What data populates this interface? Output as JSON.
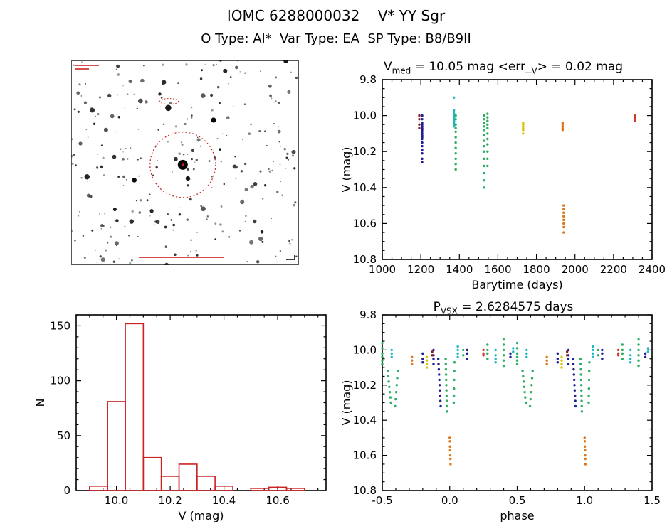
{
  "header": {
    "title": "IOMC 6288000032    V* YY Sgr",
    "subtitle": "O Type: Al*  Var Type: EA  SP Type: B8/B9II"
  },
  "finder_chart": {
    "n_stars": 300,
    "seed": 20,
    "target_fx": 0.49,
    "target_fy": 0.51,
    "circle_radius": 46,
    "mark_color": "#cc2222",
    "small_oval_fx": 0.43,
    "small_oval_fy": 0.2
  },
  "chart_data": [
    {
      "id": "lightcurve",
      "type": "scatter",
      "title_text": "V_med = 10.05 mag <err_V> = 0.02 mag",
      "title_parts": [
        {
          "t": "V"
        },
        {
          "t": "med",
          "sub": true
        },
        {
          "t": " = 10.05 mag <err_"
        },
        {
          "t": "V",
          "sub": true
        },
        {
          "t": "> = 0.02 mag"
        }
      ],
      "xlabel": "Barytime (days)",
      "ylabel": "V (mag)",
      "xlim": [
        1000,
        2400
      ],
      "ylim": [
        9.8,
        10.8
      ],
      "x_minor": 50,
      "y_minor": 0.05,
      "xticks": [
        {
          "v": 1000,
          "l": "1000"
        },
        {
          "v": 1200,
          "l": "1200"
        },
        {
          "v": 1400,
          "l": "1400"
        },
        {
          "v": 1600,
          "l": "1600"
        },
        {
          "v": 1800,
          "l": "1800"
        },
        {
          "v": 2000,
          "l": "2000"
        },
        {
          "v": 2200,
          "l": "2200"
        },
        {
          "v": 2400,
          "l": "2400"
        }
      ],
      "yticks": [
        {
          "v": 9.8,
          "l": "9.8"
        },
        {
          "v": 10.0,
          "l": "10.0"
        },
        {
          "v": 10.2,
          "l": "10.2"
        },
        {
          "v": 10.4,
          "l": "10.4"
        },
        {
          "v": 10.6,
          "l": "10.6"
        },
        {
          "v": 10.8,
          "l": "10.8"
        }
      ],
      "series": [
        {
          "name": "epoch-maroon",
          "color": "#8e1f1f",
          "clusters": [
            {
              "x": 1192,
              "ys": [
                10.0,
                10.02,
                10.05,
                10.07
              ]
            }
          ]
        },
        {
          "name": "epoch-navy",
          "color": "#1e1e96",
          "clusters": [
            {
              "x": 1207,
              "ys": [
                10.0,
                10.02,
                10.04,
                10.05,
                10.06,
                10.07,
                10.08,
                10.09,
                10.1,
                10.11,
                10.12,
                10.13,
                10.15,
                10.17,
                10.19,
                10.21,
                10.24,
                10.26
              ]
            }
          ]
        },
        {
          "name": "epoch-cyan",
          "color": "#1fb9c4",
          "clusters": [
            {
              "x": 1372,
              "ys": [
                9.9,
                9.97,
                9.98,
                9.99,
                10.0,
                10.01,
                10.02,
                10.03,
                10.04,
                10.05,
                10.06
              ]
            }
          ]
        },
        {
          "name": "epoch-green",
          "color": "#2eae62",
          "clusters": [
            {
              "x": 1381,
              "ys": [
                10.0,
                10.02,
                10.05,
                10.07,
                10.09,
                10.12,
                10.15,
                10.18,
                10.21,
                10.24,
                10.27,
                10.3
              ]
            },
            {
              "x": 1528,
              "ys": [
                10.0,
                10.02,
                10.04,
                10.06,
                10.08,
                10.11,
                10.14,
                10.17,
                10.2,
                10.24,
                10.28,
                10.32,
                10.36,
                10.4
              ]
            },
            {
              "x": 1546,
              "ys": [
                9.99,
                10.01,
                10.03,
                10.05,
                10.07,
                10.1,
                10.13,
                10.16,
                10.2,
                10.24,
                10.28
              ]
            }
          ]
        },
        {
          "name": "epoch-yellow",
          "color": "#d8c400",
          "clusters": [
            {
              "x": 1731,
              "ys": [
                10.04,
                10.05,
                10.06,
                10.07,
                10.08,
                10.1
              ]
            }
          ]
        },
        {
          "name": "epoch-orange",
          "color": "#e0761a",
          "clusters": [
            {
              "x": 1936,
              "ys": [
                10.04,
                10.05,
                10.06,
                10.07,
                10.08
              ]
            },
            {
              "x": 1941,
              "ys": [
                10.5,
                10.52,
                10.54,
                10.56,
                10.58,
                10.6,
                10.62,
                10.65
              ]
            }
          ]
        },
        {
          "name": "epoch-red",
          "color": "#cf3a28",
          "clusters": [
            {
              "x": 2310,
              "ys": [
                10.0,
                10.01,
                10.02,
                10.03
              ]
            }
          ]
        }
      ]
    },
    {
      "id": "histogram",
      "type": "histogram",
      "color": "#cc2222",
      "xlabel": "V (mag)",
      "ylabel": "N",
      "xlim": [
        9.85,
        10.78
      ],
      "ylim": [
        160,
        0
      ],
      "x_minor": 0.05,
      "y_minor": 10,
      "xticks": [
        {
          "v": 10.0,
          "l": "10.0"
        },
        {
          "v": 10.2,
          "l": "10.2"
        },
        {
          "v": 10.4,
          "l": "10.4"
        },
        {
          "v": 10.6,
          "l": "10.6"
        }
      ],
      "yticks": [
        {
          "v": 0,
          "l": "0"
        },
        {
          "v": 50,
          "l": "50"
        },
        {
          "v": 100,
          "l": "100"
        },
        {
          "v": 150,
          "l": "150"
        }
      ],
      "bin_edges": [
        9.9,
        9.967,
        10.033,
        10.1,
        10.167,
        10.233,
        10.3,
        10.367,
        10.433,
        10.5,
        10.567,
        10.633,
        10.7
      ],
      "counts": [
        4,
        81,
        152,
        30,
        13,
        24,
        13,
        4,
        0,
        2,
        3,
        2
      ]
    },
    {
      "id": "phase",
      "type": "scatter",
      "title_text": "P_VSX = 2.6284575 days",
      "title_parts": [
        {
          "t": "P"
        },
        {
          "t": "VSX",
          "sub": true
        },
        {
          "t": " = 2.6284575 days"
        }
      ],
      "xlabel": "phase",
      "ylabel": "V (mag)",
      "xlim": [
        -0.5,
        1.5
      ],
      "ylim": [
        9.8,
        10.8
      ],
      "x_minor": 0.1,
      "y_minor": 0.05,
      "x_repeat": 1.0,
      "xticks": [
        {
          "v": -0.5,
          "l": "-0.5"
        },
        {
          "v": 0.0,
          "l": "0.0"
        },
        {
          "v": 0.5,
          "l": "0.5"
        },
        {
          "v": 1.0,
          "l": "1.0"
        },
        {
          "v": 1.5,
          "l": "1.5"
        }
      ],
      "yticks": [
        {
          "v": 9.8,
          "l": "9.8"
        },
        {
          "v": 10.0,
          "l": "10.0"
        },
        {
          "v": 10.2,
          "l": "10.2"
        },
        {
          "v": 10.4,
          "l": "10.4"
        },
        {
          "v": 10.6,
          "l": "10.6"
        },
        {
          "v": 10.8,
          "l": "10.8"
        }
      ],
      "series": [
        {
          "name": "epoch-green",
          "color": "#2eae62",
          "clusters": [
            {
              "x": -0.5,
              "ys": [
                9.96,
                9.99,
                10.02,
                10.04,
                10.06,
                10.08
              ]
            },
            {
              "x": -0.46,
              "dx": 0.004,
              "ys": [
                10.12,
                10.15,
                10.18,
                10.21,
                10.24,
                10.27,
                10.3
              ]
            },
            {
              "x": -0.405,
              "dx": 0.004,
              "ys": [
                10.32,
                10.28,
                10.24,
                10.2,
                10.16,
                10.12
              ]
            },
            {
              "x": -0.03,
              "dx": 0.001,
              "ys": [
                10.05,
                10.08,
                10.11,
                10.14,
                10.17,
                10.2,
                10.23,
                10.26,
                10.29,
                10.32,
                10.35
              ]
            },
            {
              "x": 0.03,
              "dx": 0.001,
              "ys": [
                10.3,
                10.26,
                10.22,
                10.17,
                10.12,
                10.07
              ]
            },
            {
              "x": 0.1,
              "ys": [
                10.0,
                10.03
              ]
            },
            {
              "x": 0.28,
              "ys": [
                9.97,
                10.0,
                10.02,
                10.05
              ]
            },
            {
              "x": 0.4,
              "ys": [
                9.94,
                9.97,
                10.0,
                10.03,
                10.06,
                10.09
              ]
            }
          ]
        },
        {
          "name": "epoch-navy",
          "color": "#1e1e96",
          "clusters": [
            {
              "x": -0.2,
              "ys": [
                10.02,
                10.05,
                10.07
              ]
            },
            {
              "x": -0.12,
              "ys": [
                10.0,
                10.03,
                10.05,
                10.08
              ]
            },
            {
              "x": -0.085,
              "dx": 0.002,
              "ys": [
                10.05,
                10.08,
                10.11,
                10.14,
                10.17,
                10.2,
                10.23,
                10.26,
                10.29,
                10.32
              ]
            },
            {
              "x": 0.13,
              "ys": [
                10.0,
                10.02,
                10.05
              ]
            },
            {
              "x": 0.45,
              "ys": [
                10.02,
                10.04
              ]
            }
          ]
        },
        {
          "name": "epoch-cyan",
          "color": "#1fb9c4",
          "clusters": [
            {
              "x": -0.43,
              "ys": [
                10.0,
                10.02,
                10.04
              ]
            },
            {
              "x": 0.06,
              "ys": [
                9.98,
                10.0,
                10.02,
                10.04
              ]
            },
            {
              "x": 0.34,
              "ys": [
                10.0,
                10.03,
                10.05,
                10.07
              ]
            },
            {
              "x": 0.47,
              "ys": [
                9.99,
                10.01
              ]
            }
          ]
        },
        {
          "name": "epoch-yellow",
          "color": "#d8c400",
          "clusters": [
            {
              "x": -0.17,
              "ys": [
                10.04,
                10.06,
                10.08,
                10.1
              ]
            }
          ]
        },
        {
          "name": "epoch-orange",
          "color": "#e0761a",
          "clusters": [
            {
              "x": -0.28,
              "ys": [
                10.04,
                10.06,
                10.08
              ]
            },
            {
              "x": 0.0,
              "dx": 0.001,
              "ys": [
                10.5,
                10.52,
                10.55,
                10.57,
                10.6,
                10.62,
                10.65
              ]
            }
          ]
        },
        {
          "name": "epoch-maroon",
          "color": "#8e1f1f",
          "clusters": [
            {
              "x": -0.13,
              "ys": [
                10.01,
                10.03
              ]
            }
          ]
        },
        {
          "name": "epoch-red",
          "color": "#cf3a28",
          "clusters": [
            {
              "x": 0.25,
              "ys": [
                10.0,
                10.02,
                10.03
              ]
            }
          ]
        }
      ]
    }
  ]
}
